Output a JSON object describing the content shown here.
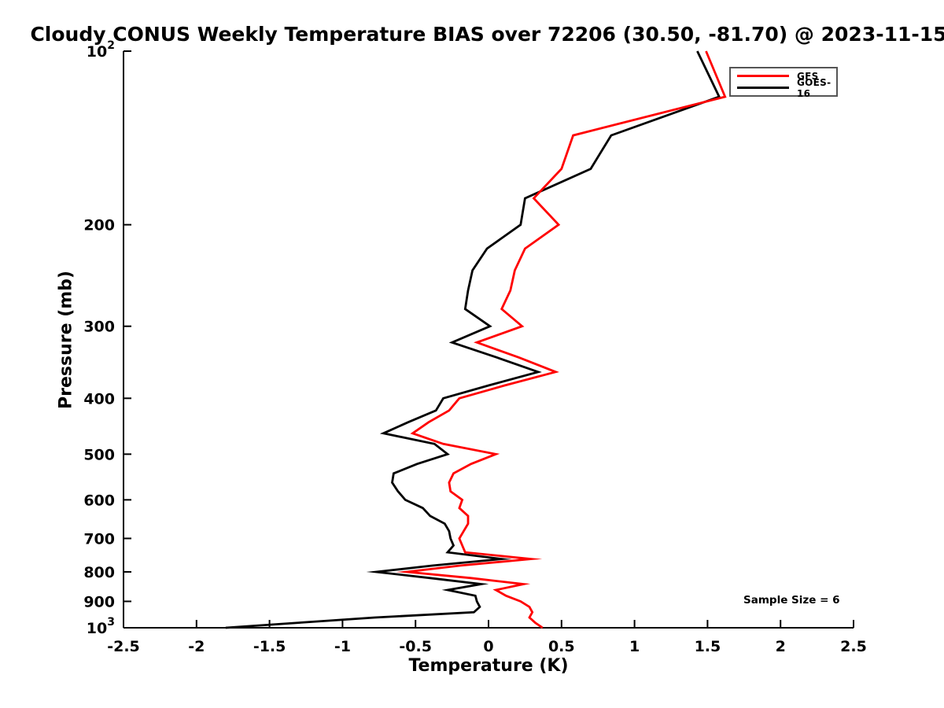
{
  "title": "Cloudy CONUS Weekly Temperature BIAS over 72206 (30.50, -81.70) @ 2023-11-15",
  "annotations": {
    "sample_size": "Sample Size = 6"
  },
  "colors": {
    "background": "#ffffff",
    "axis": "#000000",
    "legend_border": "#555555",
    "gfs_red": "#ff0000",
    "goes_black": "#000000"
  },
  "chart_data": {
    "type": "line",
    "title": "Cloudy CONUS Weekly Temperature BIAS over 72206 (30.50, -81.70) @ 2023-11-15",
    "xlabel": "Temperature (K)",
    "ylabel": "Pressure (mb)",
    "xlim": [
      -2.5,
      2.5
    ],
    "ylim": [
      100,
      1000
    ],
    "y_scale": "log",
    "y_axis_inverted": true,
    "grid": false,
    "legend_position": "upper-right-inside",
    "x_ticks": [
      -2.5,
      -2,
      -1.5,
      -1,
      -0.5,
      0,
      0.5,
      1,
      1.5,
      2,
      2.5
    ],
    "x_tick_labels": [
      "-2.5",
      "-2",
      "-1.5",
      "-1",
      "-0.5",
      "0",
      "0.5",
      "1",
      "1.5",
      "2",
      "2.5"
    ],
    "y_ticks": [
      100,
      200,
      300,
      400,
      500,
      600,
      700,
      800,
      900,
      1000
    ],
    "y_tick_labels": [
      "10^2",
      "200",
      "300",
      "400",
      "500",
      "600",
      "700",
      "800",
      "900",
      "10^3"
    ],
    "pressure_levels_mb": [
      100,
      120,
      140,
      160,
      180,
      200,
      220,
      240,
      260,
      280,
      300,
      320,
      340,
      360,
      380,
      400,
      420,
      440,
      460,
      480,
      500,
      520,
      540,
      560,
      580,
      600,
      620,
      640,
      660,
      680,
      700,
      720,
      740,
      760,
      780,
      800,
      820,
      840,
      860,
      880,
      900,
      920,
      940,
      960,
      980,
      1000
    ],
    "series": [
      {
        "name": "GFS",
        "color": "#ff0000",
        "values": [
          1.49,
          1.62,
          0.58,
          0.5,
          0.31,
          0.48,
          0.25,
          0.18,
          0.15,
          0.09,
          0.23,
          -0.08,
          0.21,
          0.46,
          0.11,
          -0.2,
          -0.27,
          -0.41,
          -0.52,
          -0.31,
          0.05,
          -0.12,
          -0.24,
          -0.27,
          -0.26,
          -0.18,
          -0.2,
          -0.14,
          -0.14,
          -0.17,
          -0.2,
          -0.18,
          -0.16,
          0.29,
          -0.19,
          -0.56,
          -0.12,
          0.24,
          0.05,
          0.12,
          0.22,
          0.28,
          0.3,
          0.28,
          0.32,
          0.37
        ]
      },
      {
        "name": "GOES-16",
        "color": "#000000",
        "values": [
          1.43,
          1.58,
          0.84,
          0.7,
          0.25,
          0.22,
          -0.01,
          -0.11,
          -0.14,
          -0.16,
          0.01,
          -0.25,
          0.06,
          0.34,
          0.0,
          -0.31,
          -0.36,
          -0.55,
          -0.72,
          -0.37,
          -0.28,
          -0.49,
          -0.65,
          -0.66,
          -0.62,
          -0.57,
          -0.45,
          -0.4,
          -0.3,
          -0.27,
          -0.26,
          -0.24,
          -0.28,
          0.09,
          -0.38,
          -0.77,
          -0.4,
          -0.05,
          -0.28,
          -0.09,
          -0.08,
          -0.06,
          -0.1,
          -0.78,
          -1.3,
          -1.8
        ]
      }
    ]
  }
}
